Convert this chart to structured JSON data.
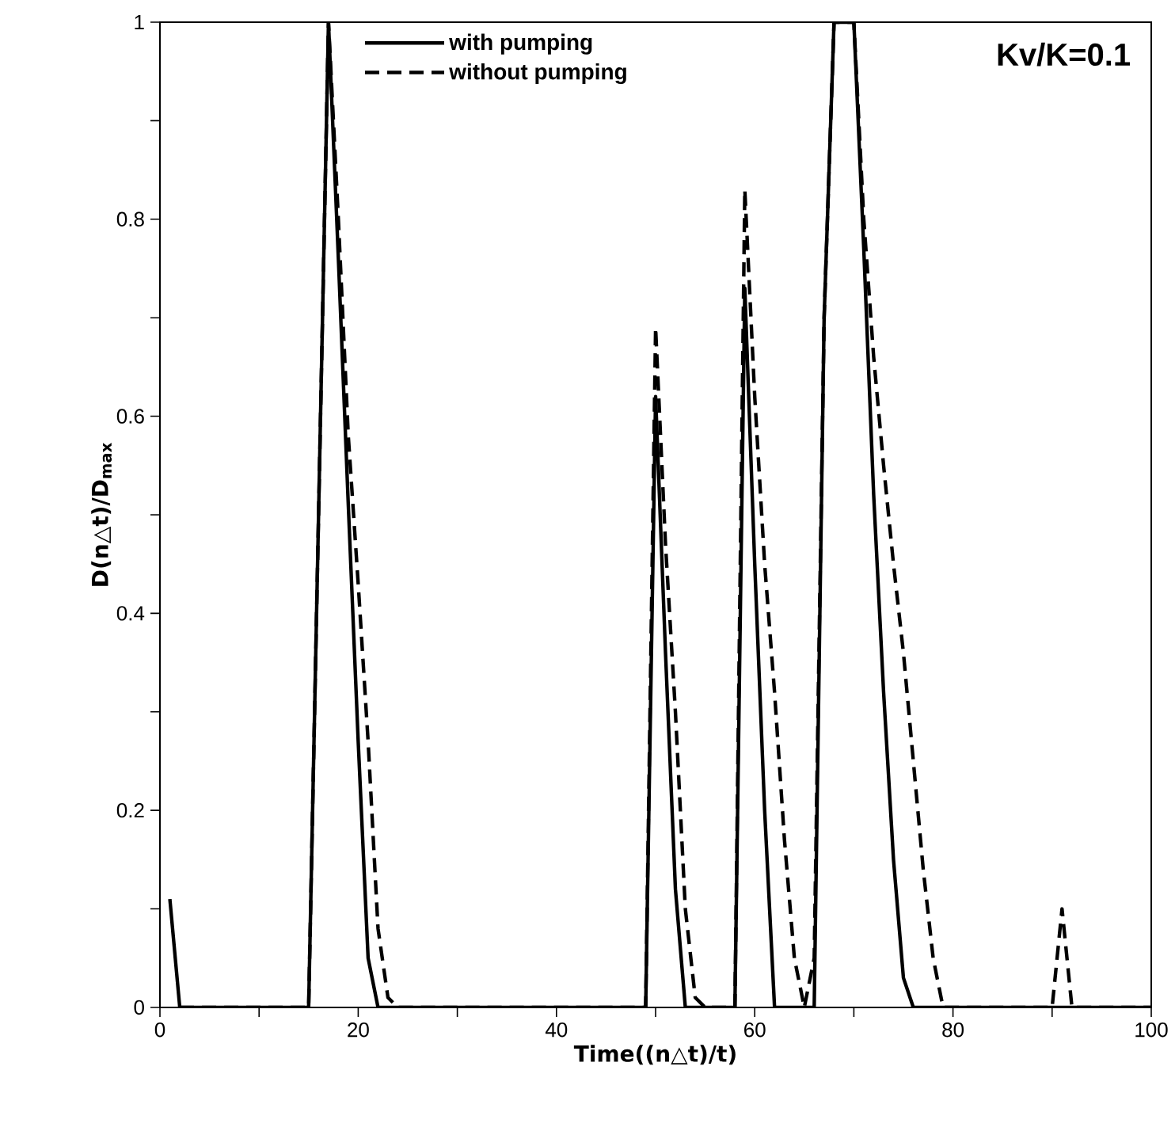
{
  "chart_data": {
    "type": "line",
    "xlabel": "Time((n△t)/t)",
    "ylabel": "D(n△t)/D$_{max}$",
    "xlim": [
      0,
      100
    ],
    "ylim": [
      0,
      1
    ],
    "xticks": [
      0,
      20,
      40,
      60,
      80,
      100
    ],
    "yticks": [
      0,
      0.2,
      0.4,
      0.6,
      0.8,
      1
    ],
    "grid": false,
    "legend": "top",
    "marker": "none",
    "annotations": [
      "Kv/K=0.1"
    ],
    "series": [
      {
        "name": "with pumping",
        "color": "#000000",
        "line_style": "solid",
        "x": [
          1,
          2,
          15,
          17,
          18,
          19,
          20,
          21,
          22,
          49,
          50,
          51,
          52,
          53,
          58,
          59,
          60,
          61,
          62,
          66,
          67,
          68,
          70,
          71,
          72,
          73,
          74,
          75,
          76,
          100
        ],
        "values": [
          0.11,
          0,
          0,
          1,
          0.76,
          0.51,
          0.27,
          0.05,
          0,
          0,
          0.62,
          0.36,
          0.12,
          0,
          0,
          0.73,
          0.45,
          0.2,
          0,
          0,
          0.7,
          1,
          1,
          0.77,
          0.52,
          0.32,
          0.15,
          0.03,
          0,
          0
        ]
      },
      {
        "name": "without pumping",
        "color": "#000000",
        "line_style": "dashed",
        "x": [
          2,
          15,
          17,
          18,
          19,
          20,
          21,
          22,
          23,
          24,
          49,
          50,
          51,
          52,
          53,
          54,
          55,
          58,
          59,
          60,
          61,
          62,
          63,
          64,
          65,
          66,
          67,
          68,
          70,
          71,
          72,
          73,
          74,
          75,
          76,
          77,
          78,
          79,
          90,
          91,
          92,
          100
        ],
        "values": [
          0,
          0,
          1,
          0.8,
          0.58,
          0.43,
          0.27,
          0.08,
          0.01,
          0,
          0,
          0.69,
          0.47,
          0.3,
          0.1,
          0.01,
          0,
          0,
          0.83,
          0.62,
          0.45,
          0.32,
          0.17,
          0.05,
          0,
          0.05,
          0.7,
          1,
          1,
          0.8,
          0.66,
          0.55,
          0.45,
          0.36,
          0.25,
          0.14,
          0.05,
          0,
          0,
          0.1,
          0,
          0
        ]
      }
    ]
  }
}
